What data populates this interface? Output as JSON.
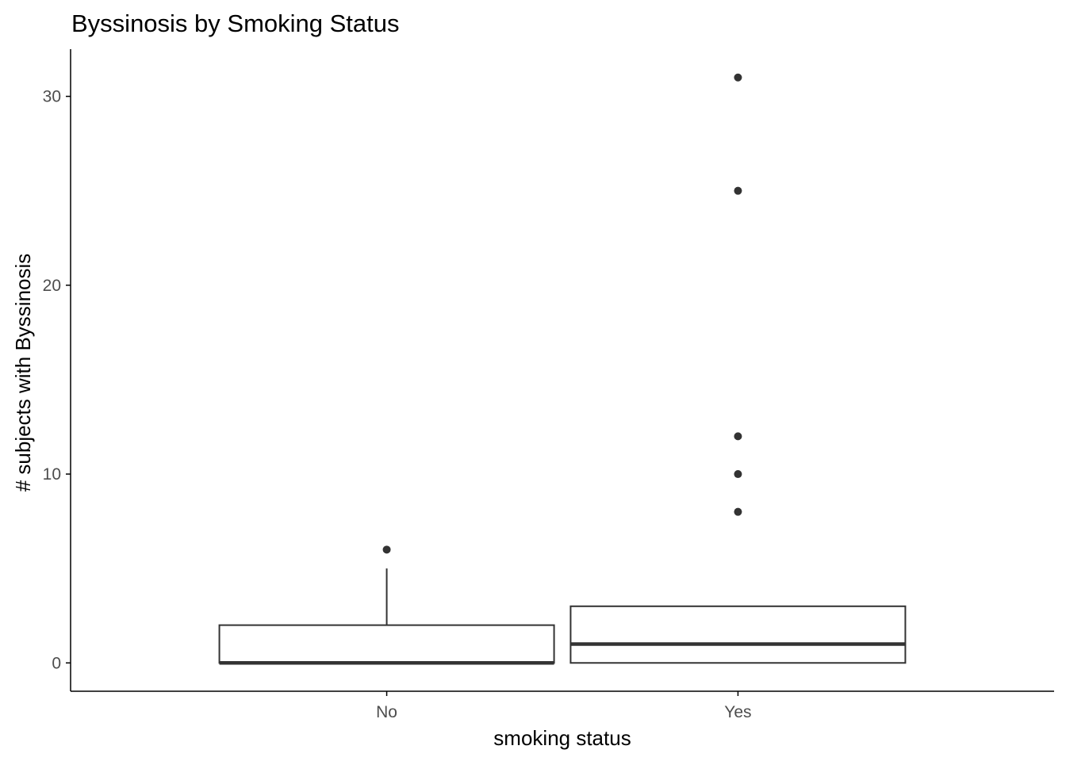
{
  "chart_data": {
    "type": "box",
    "title": "Byssinosis by Smoking Status",
    "xlabel": "smoking status",
    "ylabel": "# subjects with Byssinosis",
    "categories": [
      "No",
      "Yes"
    ],
    "ylim": [
      -1.5,
      32.5
    ],
    "yticks": [
      0,
      10,
      20,
      30
    ],
    "grid": false,
    "boxes": [
      {
        "category": "No",
        "lower_whisker": 0,
        "q1": 0,
        "median": 0,
        "q3": 2,
        "upper_whisker": 5,
        "outliers": [
          6
        ]
      },
      {
        "category": "Yes",
        "lower_whisker": 0,
        "q1": 0,
        "median": 1,
        "q3": 3,
        "upper_whisker": 3,
        "outliers": [
          8,
          10,
          12,
          25,
          31
        ]
      }
    ],
    "colors": {
      "box_stroke": "#333333",
      "outlier": "#333333",
      "axis": "#000000",
      "tick_text": "#4d4d4d"
    }
  }
}
